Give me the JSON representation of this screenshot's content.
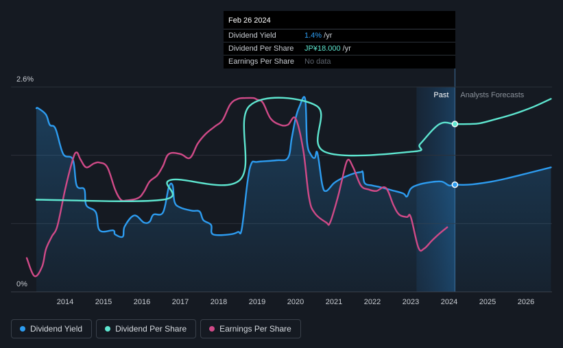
{
  "chart_data": {
    "type": "line",
    "y_axis": {
      "top_label": "2.6%",
      "bottom_label": "0%",
      "ylim": [
        0,
        2.6
      ]
    },
    "x_ticks": [
      "2014",
      "2015",
      "2016",
      "2017",
      "2018",
      "2019",
      "2020",
      "2021",
      "2022",
      "2023",
      "2024",
      "2025",
      "2026"
    ],
    "xlim": [
      2013.0,
      2026.65
    ],
    "region_labels": {
      "past": "Past",
      "forecast": "Analysts Forecasts"
    },
    "past_start": 2023.15,
    "divider_x": 2024.15,
    "series": [
      {
        "name": "Dividend Yield",
        "color": "#2d9cf0",
        "fill": true,
        "x": [
          2013.25,
          2013.3,
          2013.5,
          2013.6,
          2013.75,
          2013.95,
          2014.2,
          2014.3,
          2014.5,
          2014.55,
          2014.8,
          2014.9,
          2015.25,
          2015.3,
          2015.5,
          2015.55,
          2015.8,
          2016.05,
          2016.2,
          2016.3,
          2016.55,
          2016.7,
          2016.8,
          2016.85,
          2017.0,
          2017.3,
          2017.5,
          2017.6,
          2017.8,
          2017.85,
          2018.3,
          2018.5,
          2018.6,
          2018.75,
          2018.85,
          2019.0,
          2019.5,
          2019.8,
          2019.9,
          2020.0,
          2020.1,
          2020.25,
          2020.3,
          2020.4,
          2020.5,
          2020.55,
          2020.6,
          2020.7,
          2020.8,
          2021.0,
          2021.2,
          2021.5,
          2021.7,
          2021.75,
          2021.8,
          2022.0,
          2022.2,
          2022.5,
          2022.8,
          2022.9,
          2023.0,
          2023.2,
          2023.5,
          2023.8,
          2024.0,
          2024.15,
          2024.5,
          2025.0,
          2025.5,
          2026.0,
          2026.65
        ],
        "y": [
          2.33,
          2.33,
          2.25,
          2.12,
          2.07,
          1.75,
          1.68,
          1.35,
          1.3,
          1.1,
          1.01,
          0.78,
          0.78,
          0.73,
          0.7,
          0.83,
          0.97,
          0.88,
          0.89,
          0.98,
          1.01,
          1.33,
          1.35,
          1.14,
          1.07,
          1.03,
          1.02,
          0.91,
          0.85,
          0.73,
          0.73,
          0.76,
          0.8,
          1.4,
          1.63,
          1.65,
          1.67,
          1.7,
          1.95,
          2.2,
          2.35,
          2.45,
          1.9,
          1.74,
          1.7,
          1.78,
          1.68,
          1.35,
          1.28,
          1.38,
          1.44,
          1.5,
          1.52,
          1.52,
          1.38,
          1.35,
          1.33,
          1.29,
          1.25,
          1.21,
          1.31,
          1.36,
          1.39,
          1.4,
          1.35,
          1.36,
          1.36,
          1.39,
          1.44,
          1.5,
          1.58
        ]
      },
      {
        "name": "Dividend Per Share",
        "color": "#5ee6d0",
        "fill": false,
        "x": [
          2013.25,
          2016.55,
          2016.75,
          2018.55,
          2018.8,
          2020.55,
          2020.75,
          2023.05,
          2023.25,
          2023.75,
          2024.15,
          2024.5,
          2024.8,
          2025.2,
          2025.7,
          2026.2,
          2026.65
        ],
        "y": [
          1.17,
          1.17,
          1.42,
          1.42,
          2.36,
          2.36,
          1.78,
          1.78,
          1.88,
          2.13,
          2.13,
          2.13,
          2.14,
          2.19,
          2.26,
          2.35,
          2.45
        ]
      },
      {
        "name": "Earnings Per Share",
        "color": "#d04a88",
        "fill": false,
        "x": [
          2013.0,
          2013.2,
          2013.4,
          2013.5,
          2013.65,
          2013.8,
          2014.0,
          2014.2,
          2014.3,
          2014.4,
          2014.55,
          2014.75,
          2014.9,
          2015.1,
          2015.3,
          2015.45,
          2015.6,
          2015.9,
          2016.05,
          2016.2,
          2016.4,
          2016.55,
          2016.7,
          2017.0,
          2017.25,
          2017.45,
          2017.65,
          2017.9,
          2018.1,
          2018.3,
          2018.5,
          2018.7,
          2018.9,
          2019.0,
          2019.15,
          2019.35,
          2019.6,
          2019.8,
          2020.0,
          2020.2,
          2020.35,
          2020.5,
          2020.8,
          2020.9,
          2021.1,
          2021.2,
          2021.35,
          2021.5,
          2021.7,
          2021.9,
          2022.1,
          2022.35,
          2022.55,
          2022.7,
          2022.9,
          2023.0,
          2023.2,
          2023.35,
          2023.55,
          2023.75,
          2023.95
        ],
        "y": [
          0.43,
          0.2,
          0.32,
          0.54,
          0.7,
          0.84,
          1.3,
          1.68,
          1.77,
          1.68,
          1.58,
          1.63,
          1.64,
          1.58,
          1.3,
          1.17,
          1.16,
          1.19,
          1.27,
          1.4,
          1.48,
          1.6,
          1.75,
          1.75,
          1.7,
          1.88,
          2.0,
          2.1,
          2.18,
          2.38,
          2.45,
          2.46,
          2.46,
          2.44,
          2.4,
          2.2,
          2.12,
          2.12,
          2.2,
          1.8,
          1.2,
          1.0,
          0.88,
          0.88,
          1.2,
          1.4,
          1.67,
          1.58,
          1.35,
          1.3,
          1.28,
          1.32,
          1.1,
          0.98,
          0.95,
          0.95,
          0.56,
          0.55,
          0.65,
          0.74,
          0.82
        ]
      }
    ],
    "markers": [
      {
        "series": "Dividend Per Share",
        "x": 2024.15,
        "y": 2.13
      },
      {
        "series": "Dividend Yield",
        "x": 2024.15,
        "y": 1.36
      }
    ]
  },
  "tooltip": {
    "date": "Feb 26 2024",
    "rows": [
      {
        "label": "Dividend Yield",
        "value": "1.4%",
        "suffix": " /yr"
      },
      {
        "label": "Dividend Per Share",
        "value": "JP¥18.000",
        "suffix": " /yr"
      },
      {
        "label": "Earnings Per Share",
        "value": "No data",
        "suffix": ""
      }
    ]
  },
  "legend": [
    {
      "label": "Dividend Yield",
      "color": "#2d9cf0"
    },
    {
      "label": "Dividend Per Share",
      "color": "#5ee6d0"
    },
    {
      "label": "Earnings Per Share",
      "color": "#d04a88"
    }
  ]
}
